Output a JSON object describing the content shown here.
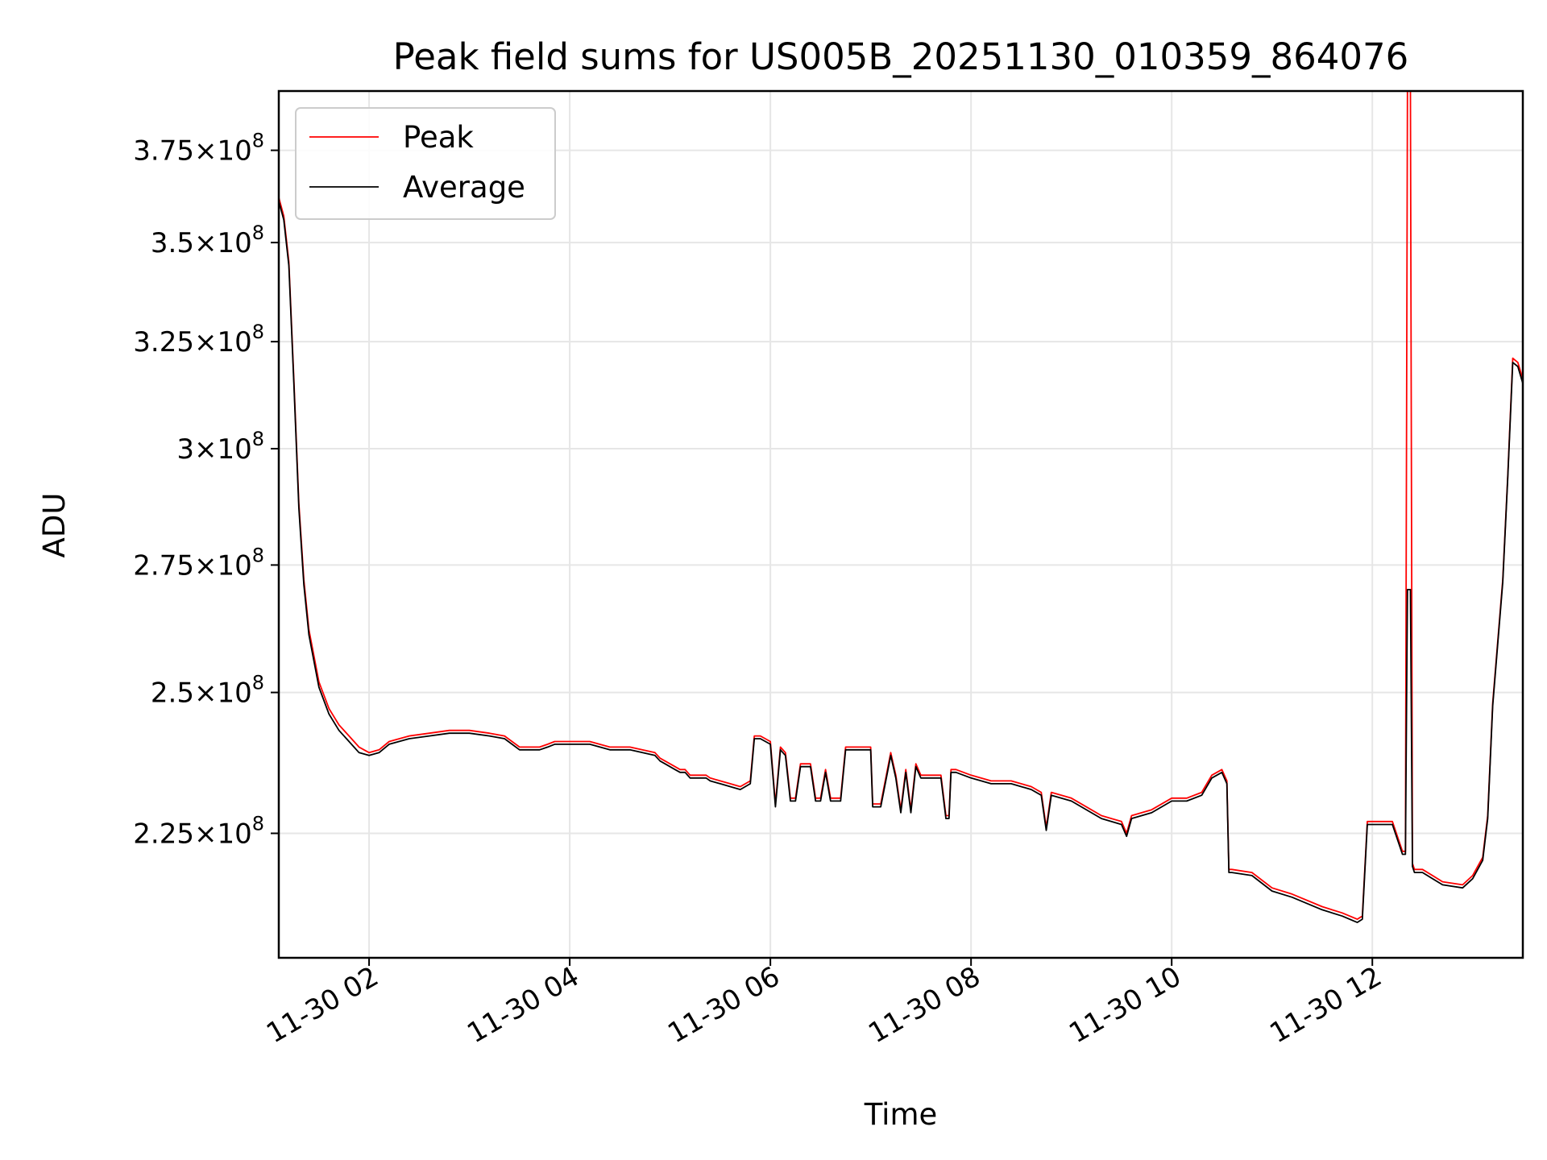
{
  "chart_data": {
    "type": "line",
    "title": "Peak field sums for US005B_20251130_010359_864076",
    "xlabel": "Time",
    "ylabel": "ADU",
    "x_unit": "hours since 11-30 00:00",
    "xlim": [
      1.1,
      13.5
    ],
    "ylim": [
      205000000,
      392000000
    ],
    "y_scale": "log",
    "grid": true,
    "legend_position": "top-left",
    "x_ticks": [
      {
        "value": 2,
        "label": "11-30 02"
      },
      {
        "value": 4,
        "label": "11-30 04"
      },
      {
        "value": 6,
        "label": "11-30 06"
      },
      {
        "value": 8,
        "label": "11-30 08"
      },
      {
        "value": 10,
        "label": "11-30 10"
      },
      {
        "value": 12,
        "label": "11-30 12"
      }
    ],
    "y_ticks": [
      {
        "value": 225000000,
        "mant": "2.25",
        "exp": "8"
      },
      {
        "value": 250000000,
        "mant": "2.5",
        "exp": "8"
      },
      {
        "value": 275000000,
        "mant": "2.75",
        "exp": "8"
      },
      {
        "value": 300000000,
        "mant": "3",
        "exp": "8"
      },
      {
        "value": 325000000,
        "mant": "3.25",
        "exp": "8"
      },
      {
        "value": 350000000,
        "mant": "3.5",
        "exp": "8"
      },
      {
        "value": 375000000,
        "mant": "3.75",
        "exp": "8"
      }
    ],
    "series": [
      {
        "name": "Peak",
        "color": "#ff0000",
        "x": [
          1.1,
          1.15,
          1.2,
          1.25,
          1.3,
          1.35,
          1.4,
          1.5,
          1.6,
          1.7,
          1.8,
          1.9,
          2.0,
          2.1,
          2.2,
          2.4,
          2.6,
          2.8,
          3.0,
          3.2,
          3.35,
          3.5,
          3.7,
          3.78,
          3.85,
          4.0,
          4.2,
          4.4,
          4.6,
          4.85,
          4.9,
          4.95,
          5.05,
          5.1,
          5.15,
          5.2,
          5.28,
          5.33,
          5.36,
          5.4,
          5.5,
          5.6,
          5.7,
          5.8,
          5.84,
          5.9,
          6.0,
          6.05,
          6.1,
          6.15,
          6.2,
          6.25,
          6.3,
          6.4,
          6.45,
          6.5,
          6.55,
          6.6,
          6.7,
          6.75,
          7.0,
          7.02,
          7.1,
          7.2,
          7.25,
          7.3,
          7.35,
          7.4,
          7.45,
          7.5,
          7.6,
          7.7,
          7.75,
          7.78,
          7.8,
          7.85,
          8.0,
          8.2,
          8.4,
          8.6,
          8.7,
          8.75,
          8.8,
          9.0,
          9.3,
          9.5,
          9.55,
          9.6,
          9.8,
          10.0,
          10.15,
          10.3,
          10.4,
          10.5,
          10.55,
          10.57,
          10.6,
          10.8,
          11.0,
          11.2,
          11.5,
          11.7,
          11.85,
          11.9,
          11.95,
          12.0,
          12.1,
          12.2,
          12.3,
          12.33,
          12.35,
          12.38,
          12.4,
          12.42,
          12.5,
          12.7,
          12.9,
          13.0,
          13.1,
          13.15,
          13.2,
          13.3,
          13.35,
          13.4,
          13.45,
          13.5
        ],
        "y": [
          362000000,
          357000000,
          345000000,
          316000000,
          288000000,
          272000000,
          262000000,
          252000000,
          247000000,
          244000000,
          242000000,
          240000000,
          239000000,
          239500000,
          241000000,
          242000000,
          242500000,
          243000000,
          243000000,
          242500000,
          242000000,
          240000000,
          240000000,
          240500000,
          241000000,
          241000000,
          241000000,
          240000000,
          240000000,
          239000000,
          238000000,
          237500000,
          236500000,
          236000000,
          236000000,
          235000000,
          235000000,
          235000000,
          235000000,
          234500000,
          234000000,
          233500000,
          233000000,
          234000000,
          242000000,
          242000000,
          241000000,
          230000000,
          240000000,
          239000000,
          231000000,
          231000000,
          237000000,
          237000000,
          231000000,
          231000000,
          236000000,
          231000000,
          231000000,
          240000000,
          240000000,
          230000000,
          230000000,
          239000000,
          235000000,
          229000000,
          236000000,
          229000000,
          237000000,
          235000000,
          235000000,
          235000000,
          228000000,
          228000000,
          236000000,
          236000000,
          235000000,
          234000000,
          234000000,
          233000000,
          232000000,
          226000000,
          232000000,
          231000000,
          228000000,
          227000000,
          225000000,
          228000000,
          229000000,
          231000000,
          231000000,
          232000000,
          235000000,
          236000000,
          234000000,
          219000000,
          219000000,
          218500000,
          216000000,
          215000000,
          213000000,
          212000000,
          211000000,
          211500000,
          227000000,
          227000000,
          227000000,
          227000000,
          222000000,
          222000000,
          392000000,
          392000000,
          220000000,
          219000000,
          219000000,
          217000000,
          216500000,
          218000000,
          221000000,
          228000000,
          248000000,
          272000000,
          294000000,
          321000000,
          320000000,
          316000000
        ]
      },
      {
        "name": "Average",
        "color": "#000000",
        "x": [
          1.1,
          1.15,
          1.2,
          1.25,
          1.3,
          1.35,
          1.4,
          1.5,
          1.6,
          1.7,
          1.8,
          1.9,
          2.0,
          2.1,
          2.2,
          2.4,
          2.6,
          2.8,
          3.0,
          3.2,
          3.35,
          3.5,
          3.7,
          3.78,
          3.85,
          4.0,
          4.2,
          4.4,
          4.6,
          4.85,
          4.9,
          4.95,
          5.05,
          5.1,
          5.15,
          5.2,
          5.28,
          5.33,
          5.36,
          5.4,
          5.5,
          5.6,
          5.7,
          5.8,
          5.84,
          5.9,
          6.0,
          6.05,
          6.1,
          6.15,
          6.2,
          6.25,
          6.3,
          6.4,
          6.45,
          6.5,
          6.55,
          6.6,
          6.7,
          6.75,
          7.0,
          7.02,
          7.1,
          7.2,
          7.25,
          7.3,
          7.35,
          7.4,
          7.45,
          7.5,
          7.6,
          7.7,
          7.75,
          7.78,
          7.8,
          7.85,
          8.0,
          8.2,
          8.4,
          8.6,
          8.7,
          8.75,
          8.8,
          9.0,
          9.3,
          9.5,
          9.55,
          9.6,
          9.8,
          10.0,
          10.15,
          10.3,
          10.4,
          10.5,
          10.55,
          10.57,
          10.6,
          10.8,
          11.0,
          11.2,
          11.5,
          11.7,
          11.85,
          11.9,
          11.95,
          12.0,
          12.1,
          12.2,
          12.3,
          12.33,
          12.35,
          12.38,
          12.4,
          12.42,
          12.5,
          12.7,
          12.9,
          13.0,
          13.1,
          13.15,
          13.2,
          13.3,
          13.35,
          13.4,
          13.45,
          13.5
        ],
        "y": [
          361000000,
          356000000,
          344000000,
          315000000,
          287000000,
          271000000,
          261000000,
          251000000,
          246000000,
          243000000,
          241000000,
          239000000,
          238500000,
          239000000,
          240500000,
          241500000,
          242000000,
          242500000,
          242500000,
          242000000,
          241500000,
          239500000,
          239500000,
          240000000,
          240500000,
          240500000,
          240500000,
          239500000,
          239500000,
          238500000,
          237500000,
          237000000,
          236000000,
          235500000,
          235500000,
          234500000,
          234500000,
          234500000,
          234500000,
          234000000,
          233500000,
          233000000,
          232500000,
          233500000,
          241500000,
          241500000,
          240500000,
          229500000,
          239500000,
          238500000,
          230500000,
          230500000,
          236500000,
          236500000,
          230500000,
          230500000,
          235500000,
          230500000,
          230500000,
          239500000,
          239500000,
          229500000,
          229500000,
          238500000,
          234500000,
          228500000,
          235500000,
          228500000,
          236500000,
          234500000,
          234500000,
          234500000,
          227500000,
          227500000,
          235500000,
          235500000,
          234500000,
          233500000,
          233500000,
          232500000,
          231500000,
          225500000,
          231500000,
          230500000,
          227500000,
          226500000,
          224500000,
          227500000,
          228500000,
          230500000,
          230500000,
          231500000,
          234500000,
          235500000,
          233500000,
          218500000,
          218500000,
          218000000,
          215500000,
          214500000,
          212500000,
          211500000,
          210500000,
          211000000,
          226500000,
          226500000,
          226500000,
          226500000,
          221500000,
          221500000,
          270000000,
          270000000,
          219500000,
          218500000,
          218500000,
          216500000,
          216000000,
          217500000,
          220500000,
          227500000,
          247500000,
          271500000,
          293500000,
          320000000,
          319000000,
          315000000
        ]
      }
    ]
  }
}
